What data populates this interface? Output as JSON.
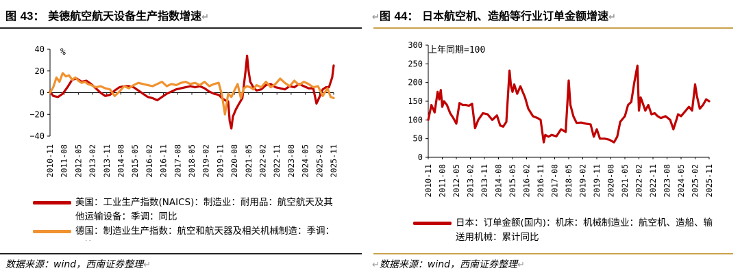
{
  "left": {
    "title_prefix": "图 ",
    "title_num": "43",
    "title_text": "： 美德航空航天设备生产指数增速",
    "return_mark": "↵",
    "source": "数据来源：wind，西南证券整理",
    "legend": [
      {
        "text": "美国：工业生产指数(NAICS)：制造业：耐用品：航空航天及其他运输设备：季调：同比",
        "color": "#C00000"
      },
      {
        "text": "德国：制造业生产指数：航空和航天器及相关机械制造：季调：同比",
        "color": "#F0922F"
      }
    ]
  },
  "right": {
    "title_prefix": "图 ",
    "title_num": "44",
    "title_text": "： 日本航空机、造船等行业订单金额增速",
    "return_mark": "↵",
    "source": "数据来源：wind，西南证券整理",
    "legend": [
      {
        "text": "日本：订单金额(国内)：机床：机械制造业：航空机、造船、输送用机械：累计同比",
        "color": "#C00000"
      }
    ]
  },
  "chart_data": [
    {
      "type": "line",
      "unit_label": "%",
      "ylim": [
        -40,
        40
      ],
      "yticks": [
        -40,
        -20,
        0,
        20,
        40
      ],
      "xlim": [
        2010.83,
        2025.83
      ],
      "xtick_labels": [
        "2010-11",
        "2011-08",
        "2012-05",
        "2013-02",
        "2013-11",
        "2014-08",
        "2015-05",
        "2016-02",
        "2016-11",
        "2017-08",
        "2018-05",
        "2019-02",
        "2019-11",
        "2020-08",
        "2021-05",
        "2022-02",
        "2022-11",
        "2023-08",
        "2024-05",
        "2025-02",
        "2025-11"
      ],
      "series": [
        {
          "name": "美国：工业生产指数(NAICS)：制造业：耐用品：航空航天及其他运输设备：季调：同比",
          "color": "#C00000",
          "x": [
            2010.83,
            2011.0,
            2011.25,
            2011.5,
            2011.75,
            2012.0,
            2012.25,
            2012.5,
            2012.75,
            2013.0,
            2013.25,
            2013.5,
            2013.75,
            2014.0,
            2014.25,
            2014.5,
            2014.75,
            2015.0,
            2015.25,
            2015.5,
            2015.75,
            2016.0,
            2016.25,
            2016.5,
            2016.75,
            2017.0,
            2017.25,
            2017.5,
            2017.75,
            2018.0,
            2018.25,
            2018.5,
            2018.75,
            2019.0,
            2019.25,
            2019.5,
            2019.75,
            2019.92,
            2020.08,
            2020.25,
            2020.33,
            2020.42,
            2020.5,
            2020.67,
            2020.83,
            2021.0,
            2021.17,
            2021.25,
            2021.33,
            2021.42,
            2021.58,
            2021.75,
            2022.0,
            2022.25,
            2022.5,
            2022.75,
            2023.0,
            2023.25,
            2023.5,
            2023.75,
            2024.0,
            2024.25,
            2024.5,
            2024.75,
            2024.92,
            2025.08,
            2025.25,
            2025.42,
            2025.58,
            2025.75,
            2025.83
          ],
          "values": [
            1,
            -3,
            -4,
            -1,
            5,
            12,
            13,
            10,
            11,
            8,
            4,
            0,
            -3,
            -2,
            2,
            5,
            6,
            6,
            5,
            2,
            -1,
            -4,
            -5,
            -7,
            -4,
            -1,
            1,
            3,
            4,
            5,
            6,
            5,
            6,
            4,
            1,
            -1,
            -2,
            -5,
            -7,
            -8,
            -26,
            -33,
            -22,
            -15,
            -10,
            -5,
            20,
            34,
            20,
            10,
            5,
            2,
            3,
            7,
            8,
            5,
            4,
            3,
            6,
            5,
            8,
            6,
            4,
            4,
            -10,
            -4,
            3,
            5,
            5,
            14,
            25
          ]
        },
        {
          "name": "德国：制造业生产指数：航空和航天器及相关机械制造：季调：同比",
          "color": "#F0922F",
          "x": [
            2010.83,
            2011.0,
            2011.17,
            2011.33,
            2011.5,
            2011.67,
            2011.83,
            2012.0,
            2012.17,
            2012.33,
            2012.5,
            2012.67,
            2012.83,
            2013.0,
            2013.25,
            2013.5,
            2013.75,
            2014.0,
            2014.25,
            2014.5,
            2014.75,
            2015.0,
            2015.25,
            2015.5,
            2015.75,
            2016.0,
            2016.25,
            2016.5,
            2016.75,
            2017.0,
            2017.25,
            2017.5,
            2017.75,
            2018.0,
            2018.25,
            2018.5,
            2018.75,
            2019.0,
            2019.25,
            2019.5,
            2019.75,
            2019.92,
            2020.08,
            2020.25,
            2020.42,
            2020.58,
            2020.75,
            2020.92,
            2021.08,
            2021.25,
            2021.42,
            2021.58,
            2021.75,
            2022.0,
            2022.25,
            2022.5,
            2022.75,
            2023.0,
            2023.25,
            2023.5,
            2023.75,
            2024.0,
            2024.25,
            2024.5,
            2024.75,
            2025.0,
            2025.25,
            2025.5,
            2025.67,
            2025.83
          ],
          "values": [
            0,
            5,
            14,
            10,
            18,
            15,
            16,
            12,
            14,
            11,
            9,
            10,
            8,
            7,
            5,
            6,
            4,
            3,
            -3,
            1,
            6,
            4,
            7,
            9,
            8,
            7,
            6,
            8,
            10,
            6,
            8,
            7,
            9,
            10,
            8,
            9,
            7,
            10,
            6,
            8,
            9,
            -2,
            -20,
            -1,
            -4,
            2,
            8,
            -5,
            4,
            6,
            5,
            3,
            7,
            5,
            10,
            5,
            8,
            13,
            9,
            6,
            11,
            7,
            10,
            8,
            5,
            6,
            -3,
            4,
            -4,
            -5
          ]
        }
      ]
    },
    {
      "type": "line",
      "unit_label": "上年同期=100",
      "ylim": [
        0,
        300
      ],
      "yticks": [
        0,
        50,
        100,
        150,
        200,
        250,
        300
      ],
      "xlim": [
        2010.83,
        2025.83
      ],
      "xtick_labels": [
        "2010-11",
        "2011-08",
        "2012-05",
        "2013-02",
        "2013-11",
        "2014-08",
        "2015-05",
        "2016-02",
        "2016-11",
        "2017-08",
        "2018-05",
        "2019-02",
        "2019-11",
        "2020-08",
        "2021-05",
        "2022-02",
        "2022-11",
        "2023-08",
        "2024-05",
        "2025-02",
        "2025-11"
      ],
      "series": [
        {
          "name": "日本：订单金额(国内)：机床：机械制造业：航空机、造船、输送用机械：累计同比",
          "color": "#C00000",
          "x": [
            2010.83,
            2011.0,
            2011.17,
            2011.33,
            2011.42,
            2011.5,
            2011.58,
            2011.67,
            2011.83,
            2012.0,
            2012.17,
            2012.33,
            2012.5,
            2012.67,
            2012.83,
            2013.0,
            2013.17,
            2013.33,
            2013.5,
            2013.75,
            2014.0,
            2014.25,
            2014.5,
            2014.67,
            2014.83,
            2015.0,
            2015.17,
            2015.25,
            2015.33,
            2015.42,
            2015.58,
            2015.75,
            2016.0,
            2016.17,
            2016.42,
            2016.67,
            2016.83,
            2017.0,
            2017.08,
            2017.25,
            2017.42,
            2017.67,
            2017.92,
            2018.17,
            2018.33,
            2018.42,
            2018.58,
            2018.75,
            2019.0,
            2019.25,
            2019.5,
            2019.67,
            2019.83,
            2020.0,
            2020.25,
            2020.5,
            2020.75,
            2020.92,
            2021.08,
            2021.33,
            2021.5,
            2021.67,
            2021.83,
            2022.0,
            2022.08,
            2022.17,
            2022.25,
            2022.42,
            2022.58,
            2022.75,
            2022.92,
            2023.08,
            2023.25,
            2023.5,
            2023.75,
            2023.92,
            2024.08,
            2024.17,
            2024.33,
            2024.5,
            2024.75,
            2024.92,
            2025.08,
            2025.17,
            2025.33,
            2025.5,
            2025.67,
            2025.83
          ],
          "values": [
            100,
            140,
            120,
            175,
            155,
            180,
            135,
            150,
            140,
            118,
            105,
            90,
            145,
            140,
            140,
            138,
            143,
            78,
            100,
            118,
            115,
            100,
            112,
            85,
            82,
            95,
            232,
            190,
            175,
            195,
            170,
            190,
            160,
            130,
            110,
            105,
            100,
            40,
            60,
            55,
            60,
            56,
            75,
            68,
            205,
            140,
            110,
            92,
            93,
            90,
            88,
            55,
            75,
            50,
            50,
            47,
            40,
            55,
            95,
            110,
            140,
            148,
            200,
            245,
            125,
            160,
            150,
            125,
            140,
            115,
            118,
            110,
            105,
            110,
            100,
            75,
            100,
            115,
            110,
            120,
            135,
            125,
            195,
            165,
            130,
            140,
            155,
            150
          ]
        }
      ]
    }
  ]
}
